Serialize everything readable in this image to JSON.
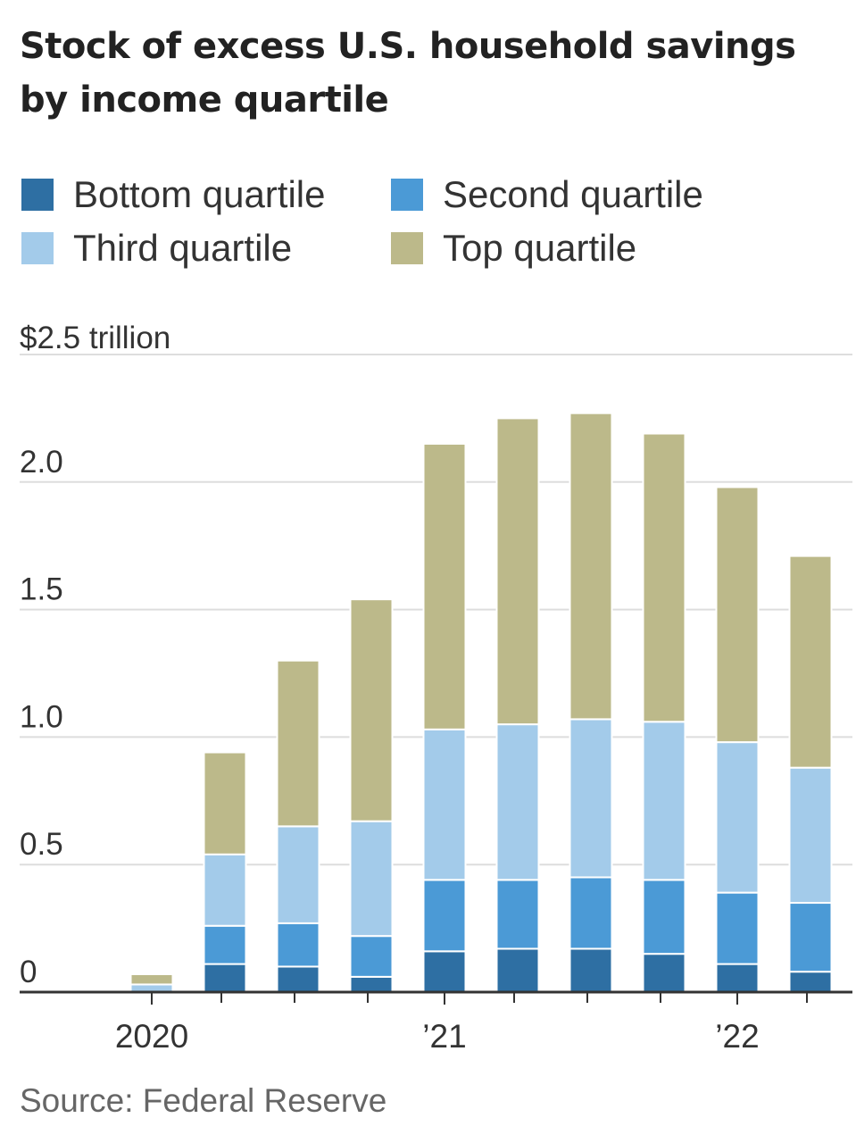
{
  "title": "Stock of excess U.S. household savings by income quartile",
  "legend": [
    {
      "label": "Bottom quartile",
      "color": "#2e6fa3"
    },
    {
      "label": "Second quartile",
      "color": "#4b9ad6"
    },
    {
      "label": "Third quartile",
      "color": "#a3cbea"
    },
    {
      "label": "Top quartile",
      "color": "#bcb98a"
    }
  ],
  "source": "Source: Federal Reserve",
  "chart_data": {
    "type": "bar",
    "stacked": true,
    "unit_label": "$2.5 trillion",
    "ylim": [
      0,
      2.5
    ],
    "y_ticks": [
      {
        "value": 0,
        "label": "0"
      },
      {
        "value": 0.5,
        "label": "0.5"
      },
      {
        "value": 1.0,
        "label": "1.0"
      },
      {
        "value": 1.5,
        "label": "1.5"
      },
      {
        "value": 2.0,
        "label": "2.0"
      },
      {
        "value": 2.5,
        "label": "$2.5 trillion"
      }
    ],
    "x_labels": [
      {
        "index": 0,
        "label": "2020"
      },
      {
        "index": 4,
        "label": "’21"
      },
      {
        "index": 8,
        "label": "’22"
      }
    ],
    "grid": true,
    "series": [
      {
        "name": "Bottom quartile",
        "color": "#2e6fa3",
        "values": [
          0.0,
          0.11,
          0.1,
          0.06,
          0.16,
          0.17,
          0.17,
          0.15,
          0.11,
          0.08
        ]
      },
      {
        "name": "Second quartile",
        "color": "#4b9ad6",
        "values": [
          0.0,
          0.15,
          0.17,
          0.16,
          0.28,
          0.27,
          0.28,
          0.29,
          0.28,
          0.27
        ]
      },
      {
        "name": "Third quartile",
        "color": "#a3cbea",
        "values": [
          0.03,
          0.28,
          0.38,
          0.45,
          0.59,
          0.61,
          0.62,
          0.62,
          0.59,
          0.53
        ]
      },
      {
        "name": "Top quartile",
        "color": "#bcb98a",
        "values": [
          0.04,
          0.4,
          0.65,
          0.87,
          1.12,
          1.2,
          1.2,
          1.13,
          1.0,
          0.83
        ]
      }
    ]
  }
}
